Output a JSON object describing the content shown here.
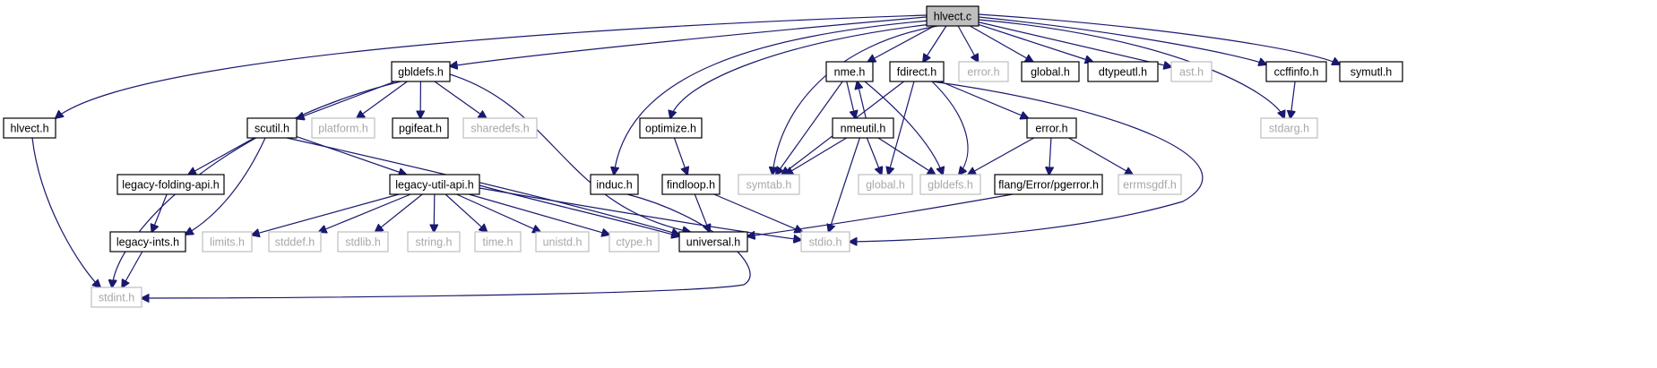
{
  "diagram": {
    "root": "hlvect.c",
    "nodes": [
      {
        "id": "hlvect_c",
        "label": "hlvect.c",
        "kind": "root"
      },
      {
        "id": "gbldefs_h",
        "label": "gbldefs.h",
        "kind": "internal"
      },
      {
        "id": "hlvect_h",
        "label": "hlvect.h",
        "kind": "internal"
      },
      {
        "id": "nme_h",
        "label": "nme.h",
        "kind": "internal"
      },
      {
        "id": "fdirect_h",
        "label": "fdirect.h",
        "kind": "internal"
      },
      {
        "id": "error_h_top",
        "label": "error.h",
        "kind": "external"
      },
      {
        "id": "global_h_top",
        "label": "global.h",
        "kind": "internal"
      },
      {
        "id": "dtypeutl_h",
        "label": "dtypeutl.h",
        "kind": "internal"
      },
      {
        "id": "ast_h",
        "label": "ast.h",
        "kind": "external"
      },
      {
        "id": "ccffinfo_h",
        "label": "ccffinfo.h",
        "kind": "internal"
      },
      {
        "id": "symutl_h",
        "label": "symutl.h",
        "kind": "internal"
      },
      {
        "id": "scutil_h",
        "label": "scutil.h",
        "kind": "internal"
      },
      {
        "id": "platform_h",
        "label": "platform.h",
        "kind": "external"
      },
      {
        "id": "pgifeat_h",
        "label": "pgifeat.h",
        "kind": "internal"
      },
      {
        "id": "sharedefs_h",
        "label": "sharedefs.h",
        "kind": "external"
      },
      {
        "id": "optimize_h",
        "label": "optimize.h",
        "kind": "internal"
      },
      {
        "id": "nmeutil_h",
        "label": "nmeutil.h",
        "kind": "internal"
      },
      {
        "id": "error_h",
        "label": "error.h",
        "kind": "internal"
      },
      {
        "id": "stdarg_h",
        "label": "stdarg.h",
        "kind": "external"
      },
      {
        "id": "legacy_folding_api_h",
        "label": "legacy-folding-api.h",
        "kind": "internal"
      },
      {
        "id": "legacy_util_api_h",
        "label": "legacy-util-api.h",
        "kind": "internal"
      },
      {
        "id": "induc_h",
        "label": "induc.h",
        "kind": "internal"
      },
      {
        "id": "findloop_h",
        "label": "findloop.h",
        "kind": "internal"
      },
      {
        "id": "symtab_h",
        "label": "symtab.h",
        "kind": "external"
      },
      {
        "id": "global_h",
        "label": "global.h",
        "kind": "external"
      },
      {
        "id": "gbldefs_h_ext",
        "label": "gbldefs.h",
        "kind": "external"
      },
      {
        "id": "pgerror_h",
        "label": "flang/Error/pgerror.h",
        "kind": "internal"
      },
      {
        "id": "errmsgdf_h",
        "label": "errmsgdf.h",
        "kind": "external"
      },
      {
        "id": "legacy_ints_h",
        "label": "legacy-ints.h",
        "kind": "internal"
      },
      {
        "id": "limits_h",
        "label": "limits.h",
        "kind": "external"
      },
      {
        "id": "stddef_h",
        "label": "stddef.h",
        "kind": "external"
      },
      {
        "id": "stdlib_h",
        "label": "stdlib.h",
        "kind": "external"
      },
      {
        "id": "string_h",
        "label": "string.h",
        "kind": "external"
      },
      {
        "id": "time_h",
        "label": "time.h",
        "kind": "external"
      },
      {
        "id": "unistd_h",
        "label": "unistd.h",
        "kind": "external"
      },
      {
        "id": "ctype_h",
        "label": "ctype.h",
        "kind": "external"
      },
      {
        "id": "universal_h",
        "label": "universal.h",
        "kind": "internal"
      },
      {
        "id": "stdio_h",
        "label": "stdio.h",
        "kind": "external"
      },
      {
        "id": "stdint_h",
        "label": "stdint.h",
        "kind": "external"
      }
    ],
    "edges": [
      [
        "hlvect_c",
        "gbldefs_h"
      ],
      [
        "hlvect_c",
        "hlvect_h"
      ],
      [
        "hlvect_c",
        "nme_h"
      ],
      [
        "hlvect_c",
        "fdirect_h"
      ],
      [
        "hlvect_c",
        "error_h_top"
      ],
      [
        "hlvect_c",
        "global_h_top"
      ],
      [
        "hlvect_c",
        "dtypeutl_h"
      ],
      [
        "hlvect_c",
        "ast_h"
      ],
      [
        "hlvect_c",
        "ccffinfo_h"
      ],
      [
        "hlvect_c",
        "symutl_h"
      ],
      [
        "hlvect_c",
        "optimize_h"
      ],
      [
        "hlvect_c",
        "induc_h"
      ],
      [
        "hlvect_c",
        "symtab_h"
      ],
      [
        "hlvect_c",
        "stdarg_h"
      ],
      [
        "gbldefs_h",
        "scutil_h"
      ],
      [
        "gbldefs_h",
        "platform_h"
      ],
      [
        "gbldefs_h",
        "pgifeat_h"
      ],
      [
        "gbldefs_h",
        "sharedefs_h"
      ],
      [
        "gbldefs_h",
        "universal_h"
      ],
      [
        "gbldefs_h",
        "stdint_h"
      ],
      [
        "hlvect_h",
        "stdint_h"
      ],
      [
        "scutil_h",
        "legacy_folding_api_h"
      ],
      [
        "scutil_h",
        "legacy_util_api_h"
      ],
      [
        "scutil_h",
        "legacy_ints_h"
      ],
      [
        "scutil_h",
        "universal_h"
      ],
      [
        "legacy_folding_api_h",
        "legacy_ints_h"
      ],
      [
        "legacy_ints_h",
        "stdint_h"
      ],
      [
        "legacy_util_api_h",
        "limits_h"
      ],
      [
        "legacy_util_api_h",
        "stddef_h"
      ],
      [
        "legacy_util_api_h",
        "stdlib_h"
      ],
      [
        "legacy_util_api_h",
        "string_h"
      ],
      [
        "legacy_util_api_h",
        "time_h"
      ],
      [
        "legacy_util_api_h",
        "unistd_h"
      ],
      [
        "legacy_util_api_h",
        "ctype_h"
      ],
      [
        "legacy_util_api_h",
        "universal_h"
      ],
      [
        "legacy_util_api_h",
        "stdio_h"
      ],
      [
        "optimize_h",
        "findloop_h"
      ],
      [
        "findloop_h",
        "universal_h"
      ],
      [
        "findloop_h",
        "stdio_h"
      ],
      [
        "induc_h",
        "stdint_h"
      ],
      [
        "nme_h",
        "nmeutil_h"
      ],
      [
        "nmeutil_h",
        "nme_h"
      ],
      [
        "nme_h",
        "symtab_h"
      ],
      [
        "nme_h",
        "gbldefs_h_ext"
      ],
      [
        "nmeutil_h",
        "symtab_h"
      ],
      [
        "nmeutil_h",
        "global_h"
      ],
      [
        "nmeutil_h",
        "gbldefs_h_ext"
      ],
      [
        "nmeutil_h",
        "stdio_h"
      ],
      [
        "fdirect_h",
        "symtab_h"
      ],
      [
        "fdirect_h",
        "global_h"
      ],
      [
        "fdirect_h",
        "gbldefs_h_ext"
      ],
      [
        "fdirect_h",
        "error_h"
      ],
      [
        "fdirect_h",
        "stdio_h"
      ],
      [
        "error_h",
        "gbldefs_h_ext"
      ],
      [
        "error_h",
        "pgerror_h"
      ],
      [
        "error_h",
        "errmsgdf_h"
      ],
      [
        "pgerror_h",
        "universal_h"
      ],
      [
        "ccffinfo_h",
        "stdarg_h"
      ]
    ]
  }
}
